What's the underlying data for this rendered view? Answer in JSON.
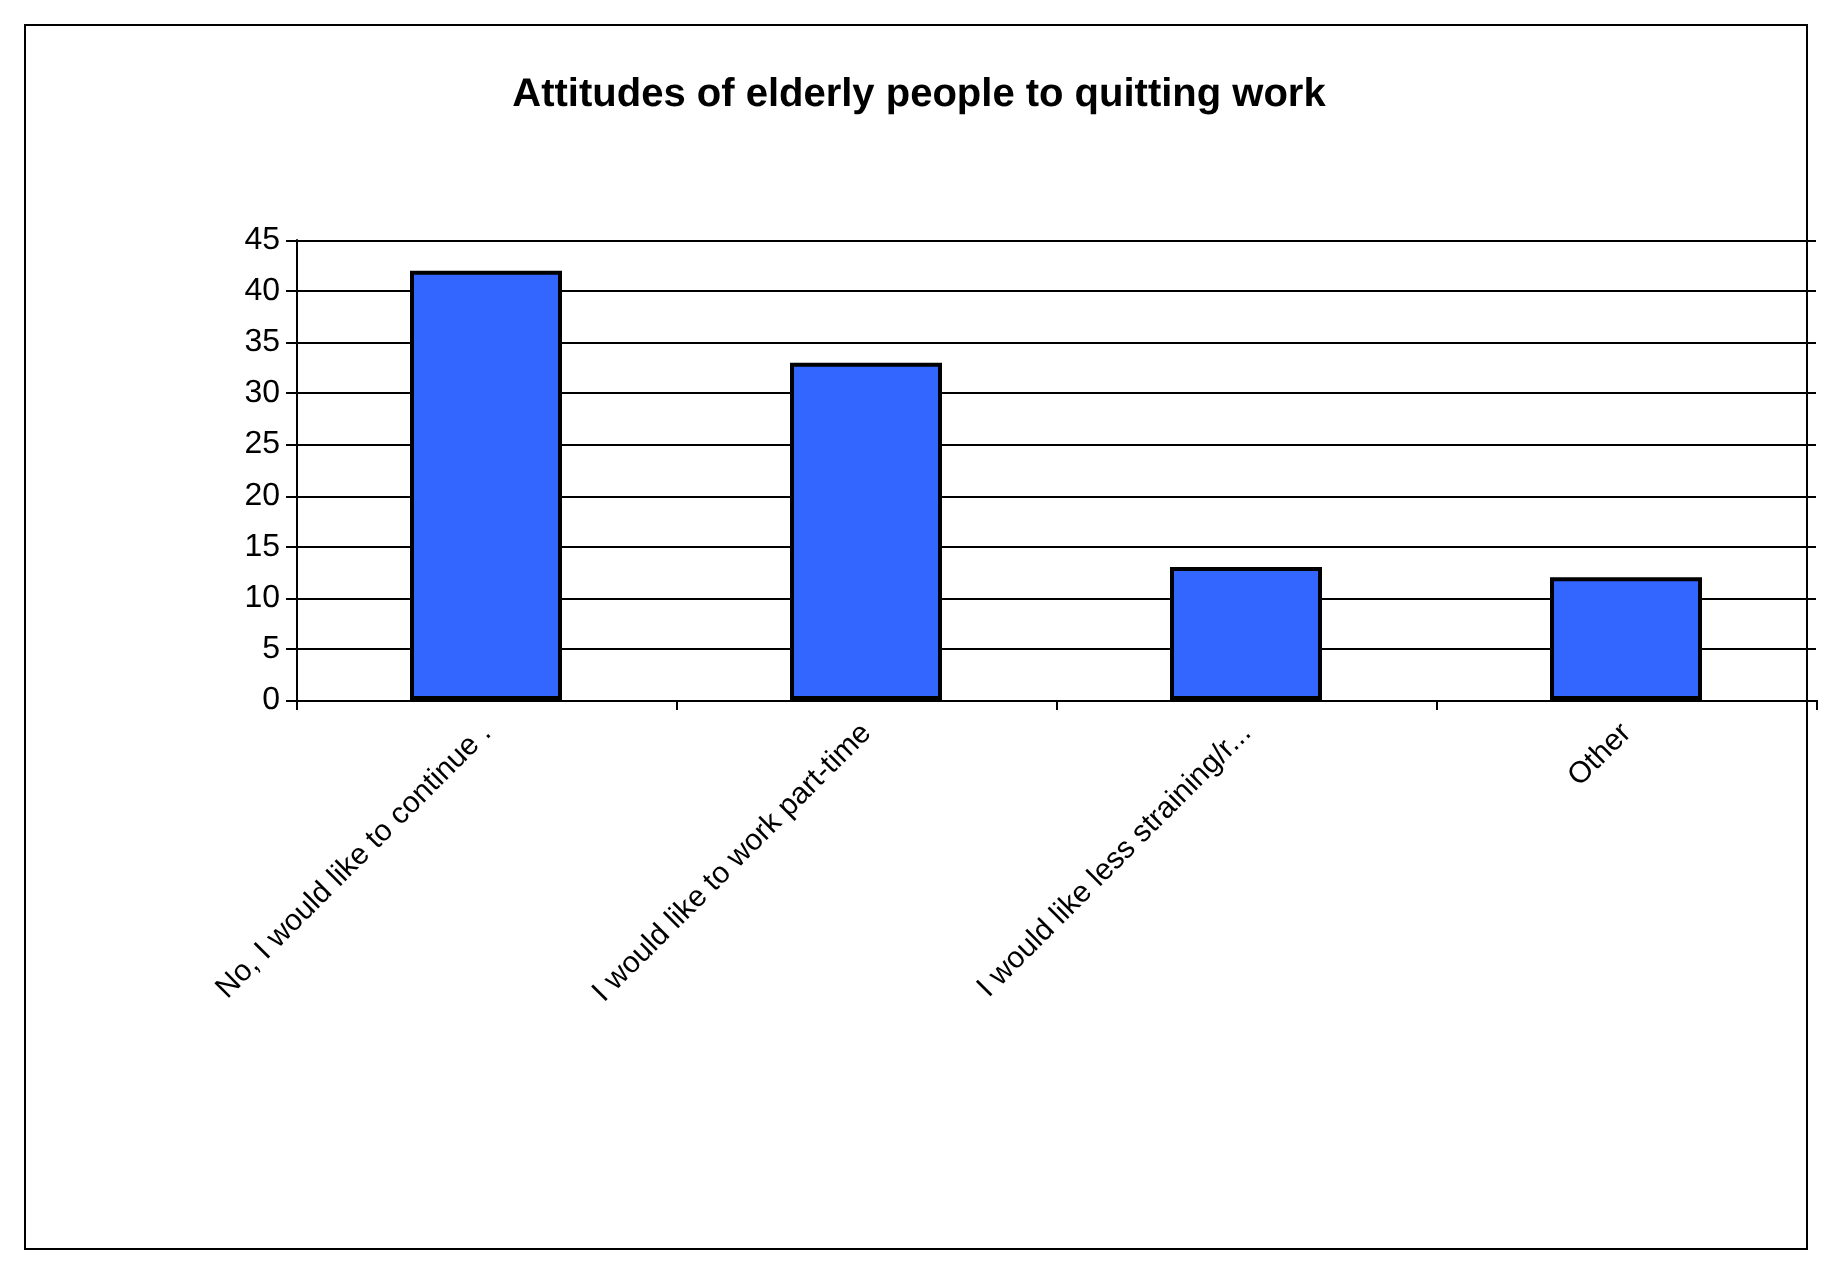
{
  "chart_data": {
    "type": "bar",
    "title": "Attitudes of elderly people to quitting work",
    "categories": [
      "No, I would like to continue .",
      "I would like to work part-time",
      "I would like less straining/r...",
      "Other"
    ],
    "values": [
      42,
      33,
      13,
      12
    ],
    "color": "#3366ff",
    "ylim": [
      0,
      45
    ],
    "yticks": [
      0,
      5,
      10,
      15,
      20,
      25,
      30,
      35,
      40,
      45
    ],
    "grid": "y"
  }
}
